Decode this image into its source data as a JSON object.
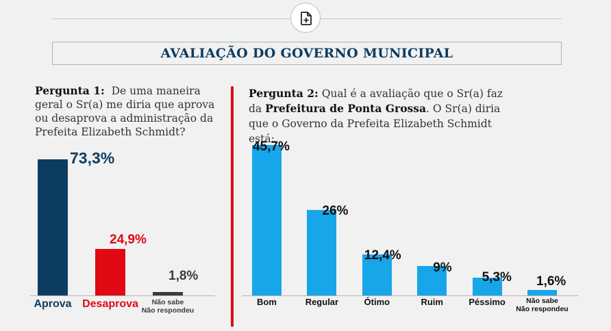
{
  "header": {
    "title": "AVALIAÇÃO DO GOVERNO MUNICIPAL",
    "badge_icon": "file-plus-icon"
  },
  "question1": {
    "label": "Pergunta 1:",
    "text": "De uma maneira geral o Sr(a) me diria que aprova ou desaprova a administração da Prefeita Elizabeth Schmidt?"
  },
  "question2": {
    "label": "Pergunta 2:",
    "text_before": "Qual é a avaliação que o Sr(a) faz da",
    "emphasis": "Prefeitura de Ponta Grossa",
    "text_after": ". O Sr(a) diria que o Governo da Prefeita Elizabeth Schmidt está:"
  },
  "colors": {
    "navy": "#0d3c61",
    "red": "#e10914",
    "dark_gray": "#3b3b3b",
    "sky": "#17a6ea"
  },
  "chart_data": [
    {
      "type": "bar",
      "categories": [
        "Aprova",
        "Desaprova",
        "Não sabe Não respondeu"
      ],
      "values": [
        73.3,
        24.9,
        1.8
      ],
      "value_labels": [
        "73,3%",
        "24,9%",
        "1,8%"
      ],
      "ylim": [
        0,
        73.3
      ],
      "grid": false,
      "title": "",
      "xlabel": "",
      "ylabel": ""
    },
    {
      "type": "bar",
      "categories": [
        "Bom",
        "Regular",
        "Ótimo",
        "Ruim",
        "Péssimo",
        "Não sabe Não respondeu"
      ],
      "values": [
        45.7,
        26,
        12.4,
        9,
        5.3,
        1.6
      ],
      "value_labels": [
        "45,7%",
        "26%",
        "12,4%",
        "9%",
        "5,3%",
        "1,6%"
      ],
      "ylim": [
        0,
        45.7
      ],
      "grid": false,
      "title": "",
      "xlabel": "",
      "ylabel": ""
    }
  ]
}
